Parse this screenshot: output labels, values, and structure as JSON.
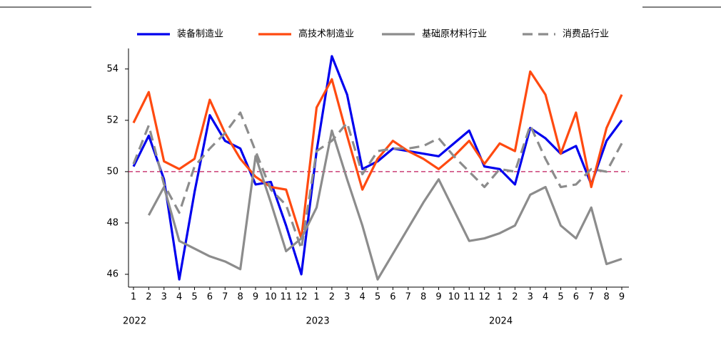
{
  "chart_data": {
    "type": "line",
    "categories": [
      "1",
      "2",
      "3",
      "4",
      "5",
      "6",
      "7",
      "8",
      "9",
      "10",
      "11",
      "12",
      "1",
      "2",
      "3",
      "4",
      "5",
      "6",
      "7",
      "8",
      "9",
      "10",
      "11",
      "12",
      "1",
      "2",
      "3",
      "4",
      "5",
      "6",
      "7",
      "8",
      "9"
    ],
    "year_labels": [
      "2022",
      "2023",
      "2024"
    ],
    "series": [
      {
        "name": "装备制造业",
        "color": "#0000ee",
        "dash": false,
        "values": [
          50.2,
          51.4,
          49.7,
          45.8,
          49.2,
          52.2,
          51.2,
          50.9,
          49.5,
          49.6,
          47.9,
          46.0,
          50.8,
          54.5,
          53.0,
          50.1,
          50.4,
          50.9,
          50.8,
          50.7,
          50.6,
          51.1,
          51.6,
          50.2,
          50.1,
          49.5,
          51.7,
          51.3,
          50.7,
          51.0,
          49.5,
          51.2,
          52.0
        ]
      },
      {
        "name": "高技术制造业",
        "color": "#ff4a10",
        "dash": false,
        "values": [
          51.9,
          53.1,
          50.4,
          50.1,
          50.5,
          52.8,
          51.5,
          50.5,
          49.8,
          49.4,
          49.3,
          47.4,
          52.5,
          53.6,
          51.4,
          49.3,
          50.5,
          51.2,
          50.8,
          50.5,
          50.1,
          50.6,
          51.2,
          50.3,
          51.1,
          50.8,
          53.9,
          53.0,
          50.7,
          52.3,
          49.4,
          51.7,
          53.0
        ]
      },
      {
        "name": "基础原材料行业",
        "color": "#8c8c8c",
        "dash": false,
        "values": [
          null,
          48.3,
          49.4,
          47.3,
          47.0,
          46.7,
          46.5,
          46.2,
          50.6,
          48.8,
          46.9,
          47.4,
          48.6,
          51.6,
          49.7,
          47.9,
          45.8,
          46.8,
          47.8,
          48.8,
          49.7,
          48.5,
          47.3,
          47.4,
          47.6,
          47.9,
          49.1,
          49.4,
          47.9,
          47.4,
          48.6,
          46.4,
          46.6
        ]
      },
      {
        "name": "消费品行业",
        "color": "#8c8c8c",
        "dash": true,
        "values": [
          50.3,
          51.8,
          49.5,
          48.4,
          50.2,
          50.9,
          51.5,
          52.3,
          50.8,
          49.3,
          48.7,
          47.0,
          50.8,
          51.2,
          51.9,
          49.9,
          50.8,
          50.9,
          50.9,
          51.0,
          51.3,
          50.6,
          50.0,
          49.4,
          50.1,
          50.0,
          51.8,
          50.5,
          49.4,
          49.5,
          50.1,
          50.0,
          51.1
        ]
      }
    ],
    "reference_line": {
      "value": 50,
      "color": "#c2185b"
    },
    "ylim": [
      45.5,
      54.8
    ],
    "yticks": [
      46,
      48,
      50,
      52,
      54
    ],
    "grid": false
  }
}
